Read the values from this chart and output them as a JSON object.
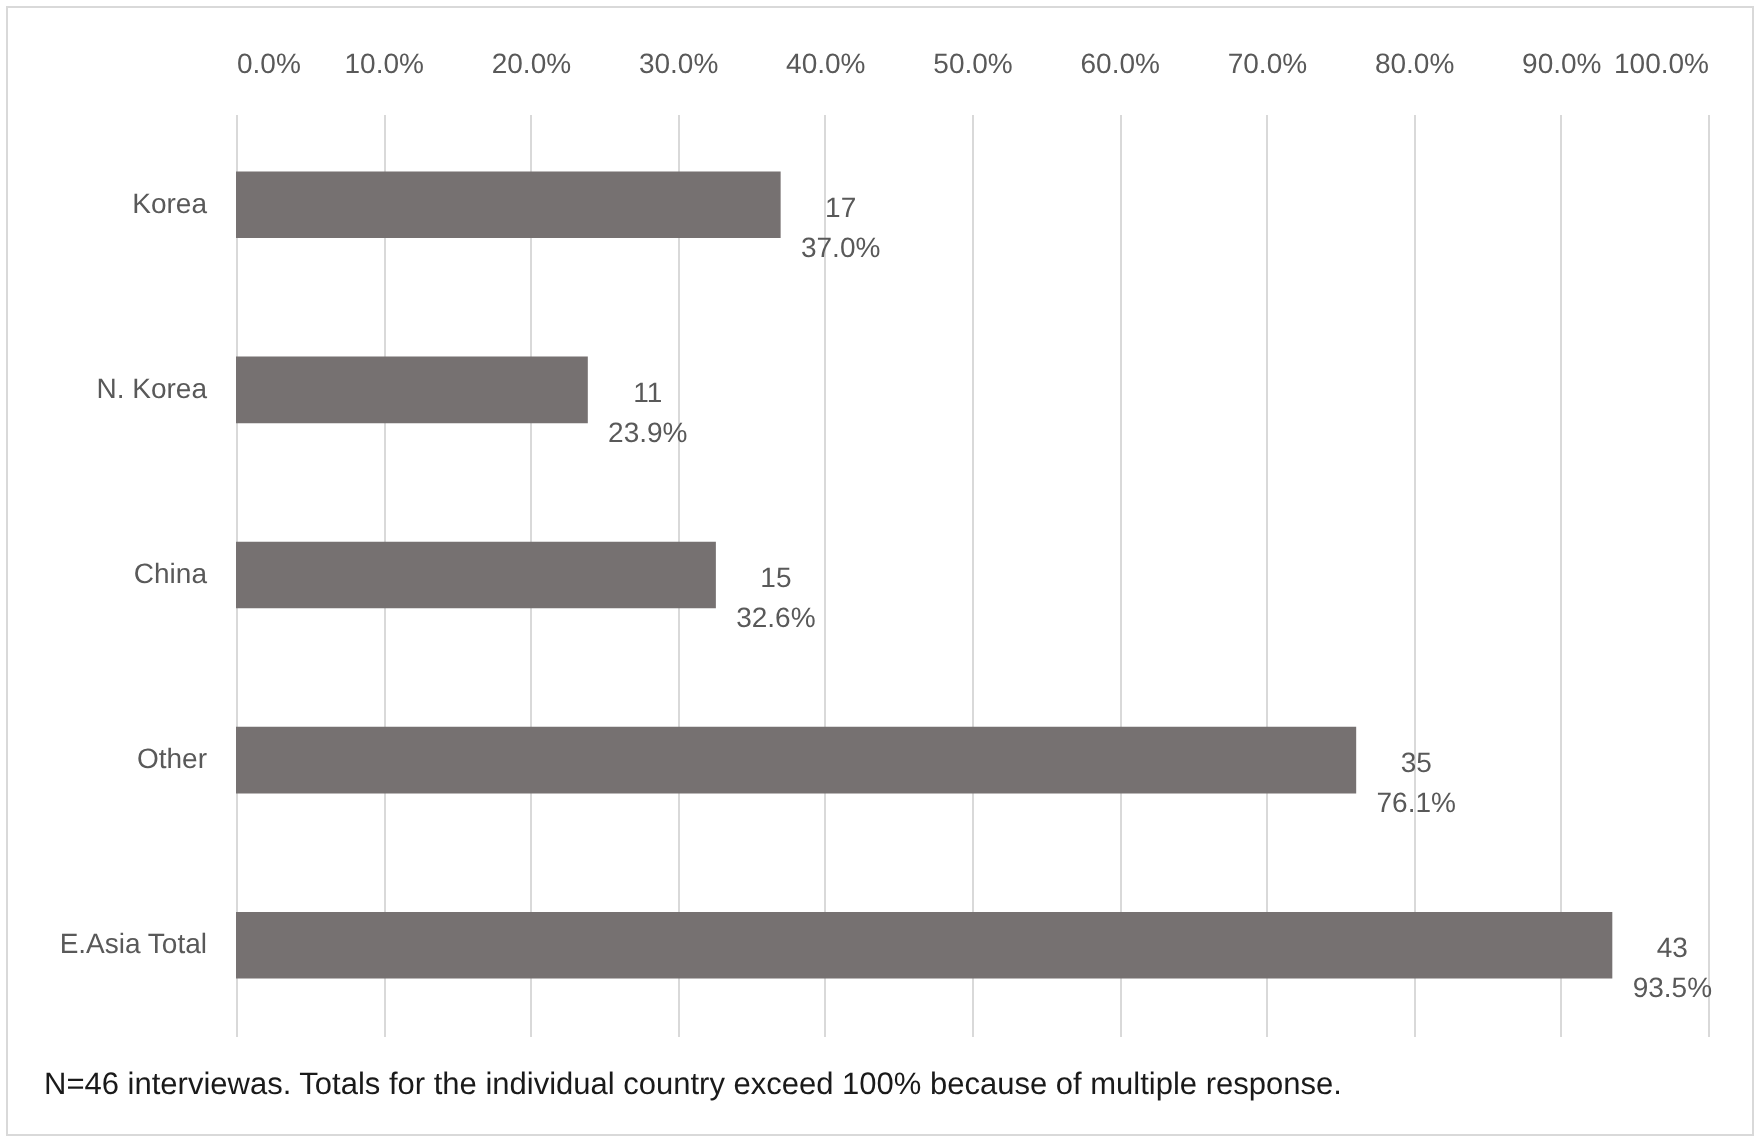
{
  "chart_data": {
    "type": "bar",
    "orientation": "horizontal",
    "categories": [
      "Korea",
      "N. Korea",
      "China",
      "Other",
      "E.Asia Total"
    ],
    "values": [
      37.0,
      23.9,
      32.6,
      76.1,
      93.5
    ],
    "color": "#767171",
    "value_labels": [
      "17\n37.0%",
      "11\n23.9%",
      "15\n32.6%",
      "35\n76.1%",
      "43\n93.5%"
    ],
    "xlim": [
      0,
      100
    ],
    "xticks": [
      {
        "value": 0,
        "label": "0.0%"
      },
      {
        "value": 10,
        "label": "10.0%"
      },
      {
        "value": 20,
        "label": "20.0%"
      },
      {
        "value": 30,
        "label": "30.0%"
      },
      {
        "value": 40,
        "label": "40.0%"
      },
      {
        "value": 50,
        "label": "50.0%"
      },
      {
        "value": 60,
        "label": "60.0%"
      },
      {
        "value": 70,
        "label": "70.0%"
      },
      {
        "value": 80,
        "label": "80.0%"
      },
      {
        "value": 90,
        "label": "90.0%"
      },
      {
        "value": 100,
        "label": "100.0%"
      }
    ],
    "grid": "x",
    "annotations": [
      "N=46 interviewas. Totals for the individual country exceed 100% because of multiple response."
    ]
  }
}
